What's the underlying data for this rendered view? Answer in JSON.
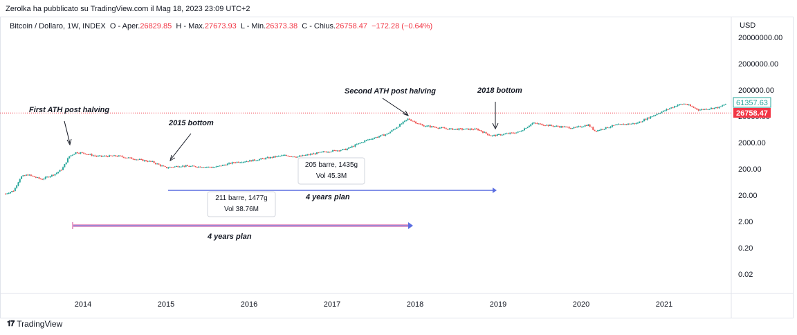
{
  "header": {
    "text": "Zerolka ha pubblicato su TradingView.com il Mag 18, 2023 23:09 UTC+2"
  },
  "legend": {
    "symbol": "Bitcoin / Dollaro, 1W, INDEX",
    "open_label": "O - Aper.",
    "open": "26829.85",
    "high_label": "H - Max.",
    "high": "27673.93",
    "low_label": "L - Min.",
    "low": "26373.38",
    "close_label": "C - Chius.",
    "close": "26758.47",
    "change": "−172.28 (−0.64%)"
  },
  "footer": {
    "brand": "TradingView"
  },
  "chart_data": {
    "type": "candlestick",
    "y_scale": "log",
    "currency": "USD",
    "y_ticks": [
      "20000000.00",
      "2000000.00",
      "200000.00",
      "20000.00",
      "2000.00",
      "200.00",
      "20.00",
      "2.00",
      "0.20",
      "0.02"
    ],
    "x_ticks": [
      "2014",
      "2015",
      "2016",
      "2017",
      "2018",
      "2019",
      "2020",
      "2021"
    ],
    "price_labels": {
      "upper": "61357.63",
      "current": "26758.47"
    },
    "price_path": [
      [
        "2013-03",
        30
      ],
      [
        "2013-04",
        100
      ],
      [
        "2013-05",
        120
      ],
      [
        "2013-07",
        80
      ],
      [
        "2013-09",
        130
      ],
      [
        "2013-10",
        200
      ],
      [
        "2013-11",
        600
      ],
      [
        "2013-12",
        850
      ],
      [
        "2014-01",
        800
      ],
      [
        "2014-03",
        600
      ],
      [
        "2014-06",
        620
      ],
      [
        "2014-09",
        450
      ],
      [
        "2014-11",
        370
      ],
      [
        "2015-01",
        220
      ],
      [
        "2015-03",
        260
      ],
      [
        "2015-06",
        240
      ],
      [
        "2015-08",
        230
      ],
      [
        "2015-11",
        360
      ],
      [
        "2016-01",
        400
      ],
      [
        "2016-06",
        650
      ],
      [
        "2016-08",
        580
      ],
      [
        "2016-12",
        900
      ],
      [
        "2017-03",
        1100
      ],
      [
        "2017-06",
        2500
      ],
      [
        "2017-09",
        4300
      ],
      [
        "2017-12",
        16000
      ],
      [
        "2018-02",
        9000
      ],
      [
        "2018-06",
        6500
      ],
      [
        "2018-10",
        6400
      ],
      [
        "2018-12",
        3600
      ],
      [
        "2019-04",
        5000
      ],
      [
        "2019-06",
        11000
      ],
      [
        "2019-09",
        8500
      ],
      [
        "2019-12",
        7200
      ],
      [
        "2020-02",
        9500
      ],
      [
        "2020-03",
        5500
      ],
      [
        "2020-06",
        9300
      ],
      [
        "2020-09",
        10800
      ],
      [
        "2020-12",
        25000
      ],
      [
        "2021-03",
        55000
      ],
      [
        "2021-04",
        60000
      ],
      [
        "2021-06",
        35000
      ],
      [
        "2021-09",
        44000
      ],
      [
        "2021-10",
        61357.63
      ]
    ],
    "annotations": [
      {
        "text": "First ATH post halving"
      },
      {
        "text": "2015 bottom"
      },
      {
        "text": "Second ATH post halving"
      },
      {
        "text": "2018 bottom"
      },
      {
        "text": "4 years plan"
      },
      {
        "text": "4 years plan"
      }
    ],
    "measure_boxes": [
      {
        "line1": "205 barre, 1435g",
        "line2": "Vol 45.3M"
      },
      {
        "line1": "211 barre, 1477g",
        "line2": "Vol 38.76M"
      }
    ],
    "colors": {
      "up": "#26a69a",
      "down": "#ef5350",
      "line_blue": "#5b6ee1",
      "line_pink": "#e8a0c8",
      "current": "#f23645"
    }
  }
}
